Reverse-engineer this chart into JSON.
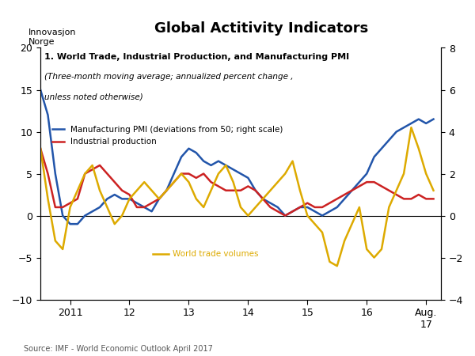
{
  "title": "Global Actitivity Indicators",
  "subtitle1": "1. World Trade, Industrial Production, and Manufacturing PMI",
  "subtitle2": "(Three-month moving average; annualized percent change ,",
  "subtitle3": "unless noted otherwise)",
  "legend1": "Manufacturing PMI (deviations from 50; right scale)",
  "legend2": "Industrial production",
  "legend3": "World trade volumes",
  "source": "Source: IMF - World Economic Outlook April 2017",
  "ylim_left": [
    -10,
    20
  ],
  "ylim_right": [
    -4,
    8
  ],
  "yticks_left": [
    -10,
    -5,
    0,
    5,
    10,
    15,
    20
  ],
  "yticks_right": [
    -4,
    -2,
    0,
    2,
    4,
    6,
    8
  ],
  "xtick_labels": [
    "2011",
    "12",
    "13",
    "14",
    "15",
    "16",
    "Aug.\n17"
  ],
  "bg_color": "#ffffff",
  "pmi_color": "#2255aa",
  "ind_color": "#cc2222",
  "trade_color": "#ddaa00",
  "t": [
    0,
    0.5,
    1,
    1.5,
    2,
    2.5,
    3,
    3.5,
    4,
    4.5,
    5,
    5.5,
    6,
    6.5,
    7,
    7.5,
    8,
    8.5,
    9,
    9.5,
    10,
    10.5,
    11,
    11.5,
    12,
    12.5,
    13,
    13.5,
    14,
    14.5,
    15,
    15.5,
    16,
    16.5,
    17,
    17.5,
    18,
    18.5,
    19,
    19.5,
    20,
    20.5,
    21,
    21.5,
    22,
    22.5,
    23,
    23.5,
    24,
    24.5,
    25,
    25.5,
    26,
    26.5
  ],
  "pmi": [
    15,
    12,
    5,
    0,
    -1,
    -1,
    0,
    0.5,
    1,
    2,
    2.5,
    2,
    2,
    1.5,
    1,
    0.5,
    2,
    3,
    5,
    7,
    8,
    7.5,
    6.5,
    6,
    6.5,
    6,
    5.5,
    5,
    4.5,
    3,
    2,
    1.5,
    1,
    0,
    0.5,
    1,
    1,
    0.5,
    0,
    0.5,
    1,
    2,
    3,
    4,
    5,
    7,
    8,
    9,
    10,
    10.5,
    11,
    11.5,
    11,
    11.5
  ],
  "ind": [
    8,
    5,
    1,
    1,
    1.5,
    2,
    5,
    5.5,
    6,
    5,
    4,
    3,
    2.5,
    1,
    1,
    1.5,
    2,
    3,
    4,
    5,
    5,
    4.5,
    5,
    4,
    3.5,
    3,
    3,
    3,
    3.5,
    3,
    2,
    1,
    0.5,
    0,
    0.5,
    1,
    1.5,
    1,
    1,
    1.5,
    2,
    2.5,
    3,
    3.5,
    4,
    4,
    3.5,
    3,
    2.5,
    2,
    2,
    2.5,
    2,
    2
  ],
  "trade": [
    8,
    2,
    -3,
    -4,
    1,
    3,
    5,
    6,
    3,
    1,
    -1,
    0,
    2,
    3,
    4,
    3,
    2,
    3,
    4,
    5,
    4,
    2,
    1,
    3,
    5,
    6,
    4,
    1,
    0,
    1,
    2,
    3,
    4,
    5,
    6.5,
    3,
    0,
    -1,
    -2,
    -5.5,
    -6,
    -3,
    -1,
    1,
    -4,
    -5,
    -4,
    1,
    3,
    5,
    10.5,
    8,
    5,
    3
  ]
}
